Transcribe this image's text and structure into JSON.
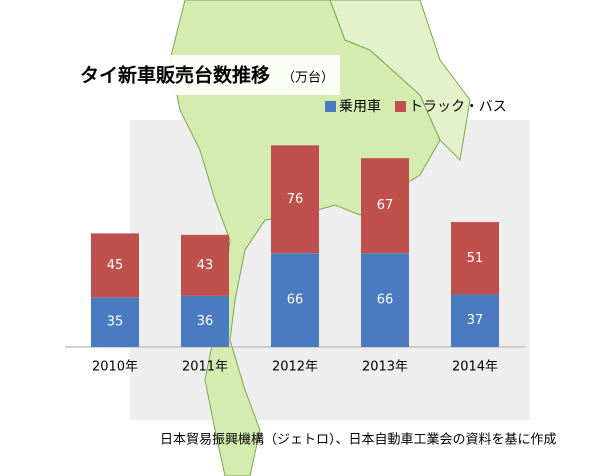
{
  "chart_data": {
    "type": "stacked-bar",
    "title": "タイ新車販売台数推移",
    "unit": "（万台）",
    "categories": [
      "2010年",
      "2011年",
      "2012年",
      "2013年",
      "2014年"
    ],
    "series": [
      {
        "name": "乗用車",
        "color": "#4a7bc0",
        "values": [
          35,
          36,
          66,
          66,
          37
        ]
      },
      {
        "name": "トラック・バス",
        "color": "#c0504d",
        "values": [
          45,
          43,
          76,
          67,
          51
        ]
      }
    ],
    "source": "日本貿易振興機構（ジェトロ）、日本自動車工業会の資料を基に作成"
  }
}
